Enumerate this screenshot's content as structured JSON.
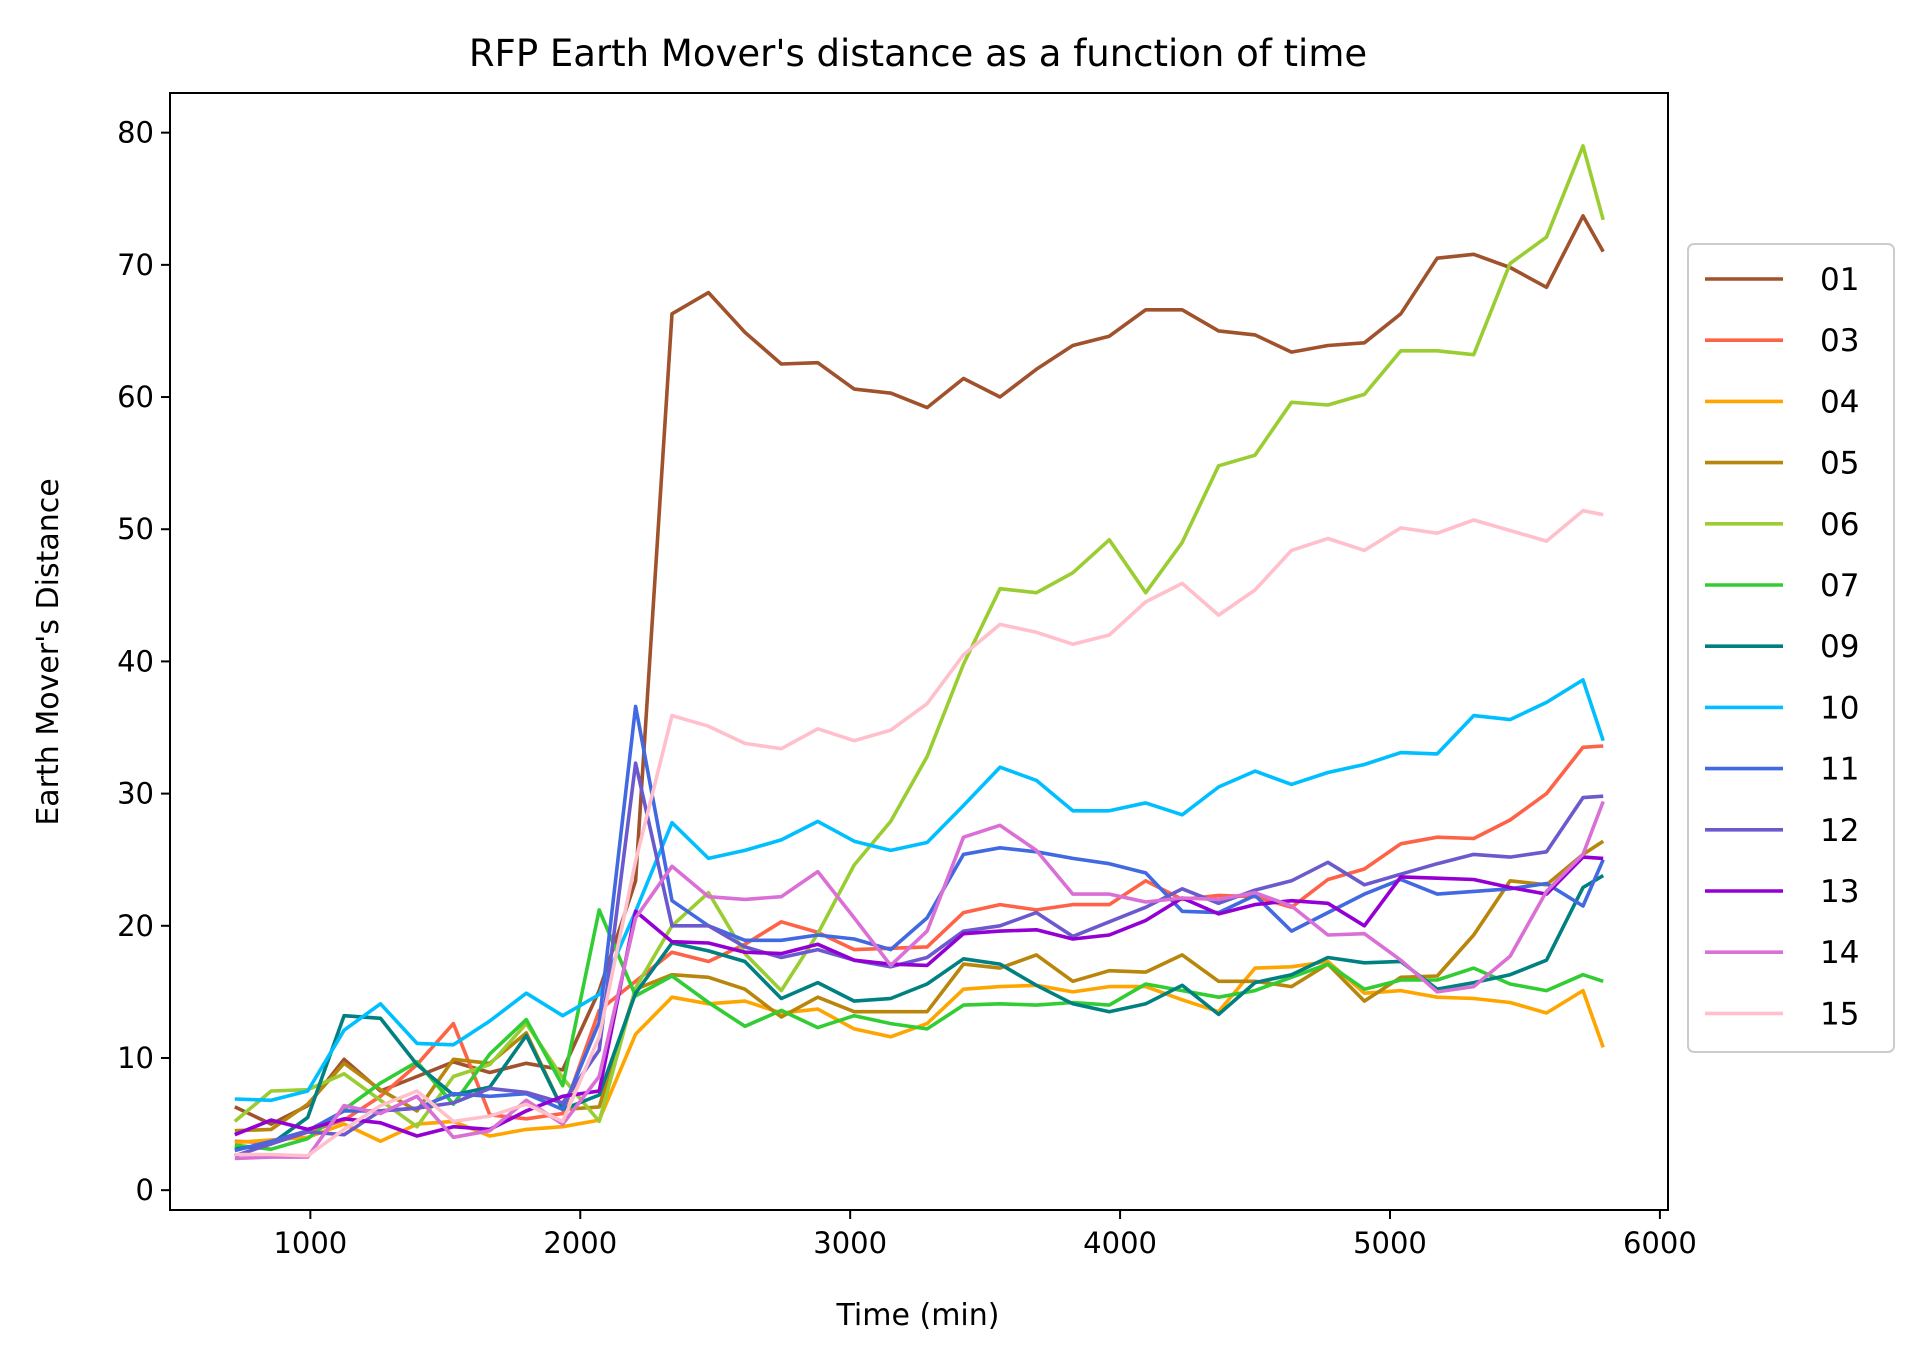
{
  "chart_data": {
    "type": "line",
    "title": "RFP Earth Mover's distance as a function of time",
    "xlabel": "Time (min)",
    "ylabel": "Earth Mover's Distance",
    "xlim": [
      480,
      6030
    ],
    "ylim": [
      -1.5,
      83
    ],
    "xticks": [
      1000,
      2000,
      3000,
      4000,
      5000,
      6000
    ],
    "yticks": [
      0,
      10,
      20,
      30,
      40,
      50,
      60,
      70,
      80
    ],
    "grid": false,
    "legend_position": "right-outside",
    "x": [
      720,
      855,
      990,
      1125,
      1260,
      1395,
      1530,
      1665,
      1800,
      1935,
      2070,
      2205,
      2340,
      2475,
      2610,
      2745,
      2880,
      3015,
      3150,
      3285,
      3420,
      3555,
      3690,
      3825,
      3960,
      4095,
      4230,
      4365,
      4500,
      4635,
      4770,
      4905,
      5040,
      5175,
      5310,
      5445,
      5580,
      5715,
      5790
    ],
    "series": [
      {
        "name": "01",
        "color": "#a0522d",
        "values": [
          6.3,
          5.0,
          6.4,
          9.9,
          7.5,
          8.6,
          9.7,
          8.9,
          9.6,
          9.1,
          15.1,
          23.4,
          66.3,
          67.9,
          64.9,
          62.5,
          62.6,
          60.6,
          60.3,
          59.2,
          61.4,
          60.0,
          62.1,
          63.9,
          64.6,
          66.6,
          66.6,
          65.0,
          64.7,
          63.4,
          63.9,
          64.1,
          66.3,
          70.5,
          70.8,
          69.8,
          68.3,
          73.7,
          71.0
        ]
      },
      {
        "name": "03",
        "color": "#ff6347",
        "values": [
          3.7,
          3.6,
          4.4,
          5.3,
          7.1,
          9.5,
          12.6,
          5.7,
          5.4,
          5.8,
          13.6,
          15.8,
          18.0,
          17.3,
          18.6,
          20.3,
          19.5,
          18.2,
          18.3,
          18.4,
          21.0,
          21.6,
          21.2,
          21.6,
          21.6,
          23.4,
          22.0,
          22.3,
          22.2,
          21.4,
          23.5,
          24.3,
          26.2,
          26.7,
          26.6,
          28.0,
          30.0,
          33.5,
          33.6
        ]
      },
      {
        "name": "04",
        "color": "#ffa500",
        "values": [
          3.6,
          3.8,
          4.0,
          5.0,
          3.7,
          5.0,
          5.2,
          4.1,
          4.6,
          4.8,
          5.3,
          11.8,
          14.6,
          14.1,
          14.3,
          13.4,
          13.7,
          12.2,
          11.6,
          12.6,
          15.2,
          15.4,
          15.5,
          15.0,
          15.4,
          15.4,
          14.4,
          13.5,
          16.8,
          16.9,
          17.3,
          14.9,
          15.1,
          14.6,
          14.5,
          14.2,
          13.4,
          15.1,
          10.8
        ]
      },
      {
        "name": "05",
        "color": "#b8860b",
        "values": [
          4.5,
          4.6,
          6.5,
          9.6,
          7.6,
          6.0,
          9.9,
          9.6,
          11.9,
          6.1,
          6.3,
          15.2,
          16.3,
          16.1,
          15.2,
          13.1,
          14.6,
          13.5,
          13.5,
          13.5,
          17.1,
          16.8,
          17.8,
          15.8,
          16.6,
          16.5,
          17.8,
          15.8,
          15.8,
          15.4,
          17.1,
          14.3,
          16.1,
          16.2,
          19.3,
          23.4,
          23.1,
          25.4,
          26.4
        ]
      },
      {
        "name": "06",
        "color": "#9acd32",
        "values": [
          5.2,
          7.5,
          7.6,
          8.8,
          6.8,
          4.8,
          8.6,
          9.5,
          12.6,
          8.5,
          5.2,
          15.3,
          20.0,
          22.5,
          17.9,
          15.1,
          19.4,
          24.6,
          27.9,
          32.8,
          39.8,
          45.5,
          45.2,
          46.7,
          49.2,
          45.2,
          49.0,
          54.8,
          55.6,
          59.6,
          59.4,
          60.2,
          63.5,
          63.5,
          63.2,
          70.1,
          72.1,
          79.0,
          73.4
        ]
      },
      {
        "name": "07",
        "color": "#32cd32",
        "values": [
          3.4,
          3.1,
          3.9,
          6.1,
          8.1,
          9.7,
          6.5,
          10.3,
          12.9,
          7.9,
          21.2,
          14.7,
          16.2,
          14.2,
          12.4,
          13.6,
          12.3,
          13.2,
          12.6,
          12.2,
          14.0,
          14.1,
          14.0,
          14.2,
          14.0,
          15.6,
          15.1,
          14.6,
          15.1,
          16.1,
          17.1,
          15.2,
          15.9,
          15.9,
          16.8,
          15.6,
          15.1,
          16.3,
          15.8
        ]
      },
      {
        "name": "09",
        "color": "#008080",
        "values": [
          3.1,
          3.5,
          5.5,
          13.2,
          13.0,
          9.5,
          7.2,
          7.8,
          11.7,
          6.1,
          7.2,
          14.9,
          18.7,
          18.1,
          17.3,
          14.5,
          15.7,
          14.3,
          14.5,
          15.6,
          17.5,
          17.1,
          15.5,
          14.1,
          13.5,
          14.1,
          15.5,
          13.3,
          15.7,
          16.3,
          17.6,
          17.2,
          17.3,
          15.2,
          15.7,
          16.3,
          17.4,
          22.9,
          23.8
        ]
      },
      {
        "name": "10",
        "color": "#00bfff",
        "values": [
          6.9,
          6.8,
          7.5,
          12.1,
          14.1,
          11.1,
          11.0,
          12.8,
          14.9,
          13.2,
          14.8,
          21.1,
          27.8,
          25.1,
          25.7,
          26.5,
          27.9,
          26.4,
          25.7,
          26.3,
          29.1,
          32.0,
          31.0,
          28.7,
          28.7,
          29.3,
          28.4,
          30.5,
          31.7,
          30.7,
          31.6,
          32.2,
          33.1,
          33.0,
          35.9,
          35.6,
          36.9,
          38.6,
          34.0
        ]
      },
      {
        "name": "11",
        "color": "#4169e1",
        "values": [
          3.0,
          3.7,
          4.5,
          6.0,
          6.0,
          6.2,
          7.3,
          7.1,
          7.3,
          6.1,
          12.7,
          36.6,
          21.9,
          20.0,
          18.9,
          18.9,
          19.3,
          19.0,
          18.2,
          20.6,
          25.4,
          25.9,
          25.6,
          25.1,
          24.7,
          24.0,
          21.1,
          21.0,
          22.3,
          19.6,
          21.0,
          22.4,
          23.5,
          22.4,
          22.6,
          22.8,
          23.2,
          21.5,
          25.0
        ]
      },
      {
        "name": "12",
        "color": "#6a5acd",
        "values": [
          2.6,
          3.5,
          4.4,
          4.2,
          6.0,
          6.2,
          6.6,
          7.7,
          7.4,
          6.6,
          10.6,
          32.3,
          20.0,
          20.0,
          18.4,
          17.6,
          18.2,
          17.4,
          16.9,
          17.6,
          19.6,
          20.0,
          21.0,
          19.2,
          20.3,
          21.4,
          22.8,
          21.7,
          22.7,
          23.4,
          24.8,
          23.1,
          23.9,
          24.7,
          25.4,
          25.2,
          25.6,
          29.7,
          29.8
        ]
      },
      {
        "name": "13",
        "color": "#9400d3",
        "values": [
          4.2,
          5.3,
          4.6,
          5.4,
          5.1,
          4.1,
          4.8,
          4.6,
          6.0,
          7.1,
          7.5,
          21.1,
          18.8,
          18.7,
          18.0,
          17.9,
          18.6,
          17.4,
          17.1,
          17.0,
          19.4,
          19.6,
          19.7,
          19.0,
          19.3,
          20.4,
          22.1,
          20.9,
          21.6,
          21.9,
          21.7,
          20.0,
          23.7,
          23.6,
          23.5,
          22.9,
          22.4,
          25.2,
          25.1
        ]
      },
      {
        "name": "14",
        "color": "#da70d6",
        "values": [
          2.4,
          2.5,
          2.5,
          6.4,
          5.8,
          7.1,
          4.0,
          4.5,
          6.8,
          5.0,
          8.6,
          20.6,
          24.5,
          22.2,
          22.0,
          22.2,
          24.1,
          20.6,
          17.0,
          19.6,
          26.7,
          27.6,
          25.7,
          22.4,
          22.4,
          21.8,
          22.1,
          22.0,
          22.5,
          21.5,
          19.3,
          19.4,
          17.4,
          15.0,
          15.4,
          17.7,
          22.6,
          25.4,
          29.4
        ]
      },
      {
        "name": "15",
        "color": "#ffc0cb",
        "values": [
          2.7,
          2.7,
          2.6,
          4.6,
          6.4,
          7.5,
          5.2,
          5.6,
          6.5,
          5.2,
          11.6,
          24.9,
          35.9,
          35.1,
          33.8,
          33.4,
          34.9,
          34.0,
          34.8,
          36.8,
          40.5,
          42.8,
          42.2,
          41.3,
          42.0,
          44.5,
          45.9,
          43.5,
          45.4,
          48.4,
          49.3,
          48.4,
          50.1,
          49.7,
          50.7,
          49.9,
          49.1,
          51.4,
          51.1
        ]
      }
    ]
  }
}
